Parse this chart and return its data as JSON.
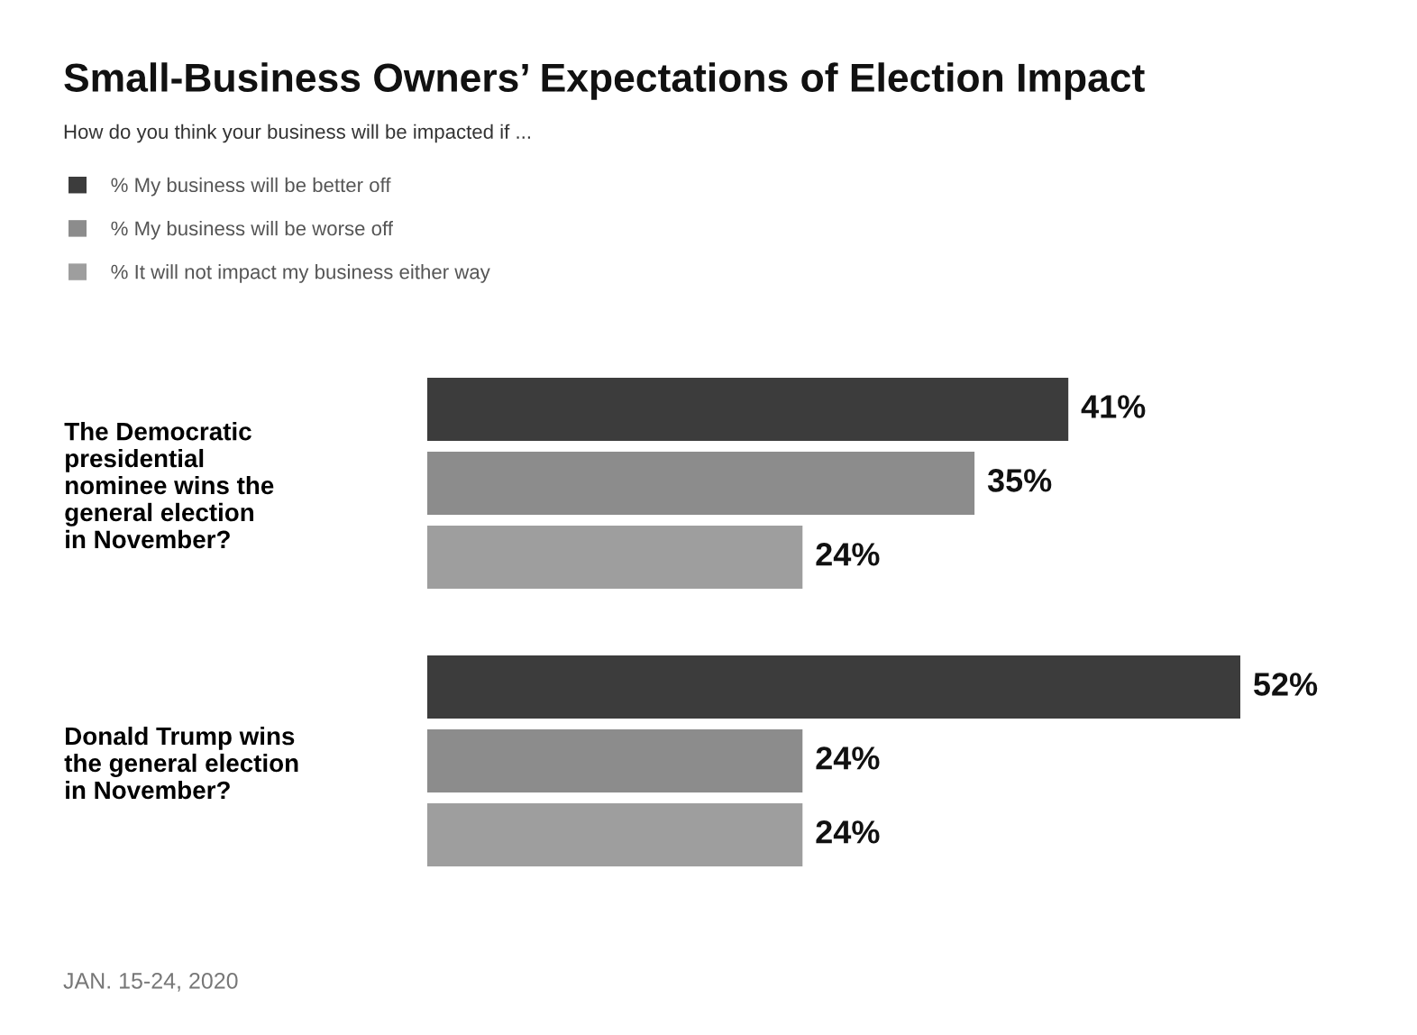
{
  "chart_data": {
    "type": "bar",
    "orientation": "horizontal",
    "title": "Small-Business Owners’ Expectations of Election Impact",
    "subtitle": "How do you think your business will be impacted if ...",
    "categories": [
      "The Democratic\npresidential\nnominee wins the\ngeneral election\nin November?",
      "Donald Trump wins\nthe general election\nin November?"
    ],
    "series": [
      {
        "name": "% My business will be better off",
        "color": "#3c3c3c",
        "values": [
          41,
          52
        ],
        "value_labels": [
          "41%",
          "52%"
        ]
      },
      {
        "name": "% My business will be worse off",
        "color": "#8c8c8c",
        "values": [
          35,
          24
        ],
        "value_labels": [
          "35%",
          "24%"
        ]
      },
      {
        "name": "% It will not impact my business either way",
        "color": "#9e9e9e",
        "values": [
          24,
          24
        ],
        "value_labels": [
          "24%",
          "24%"
        ]
      }
    ],
    "tick_labels": "y",
    "legend": "top left",
    "annotations": [
      "JAN. 15-24, 2020"
    ]
  }
}
